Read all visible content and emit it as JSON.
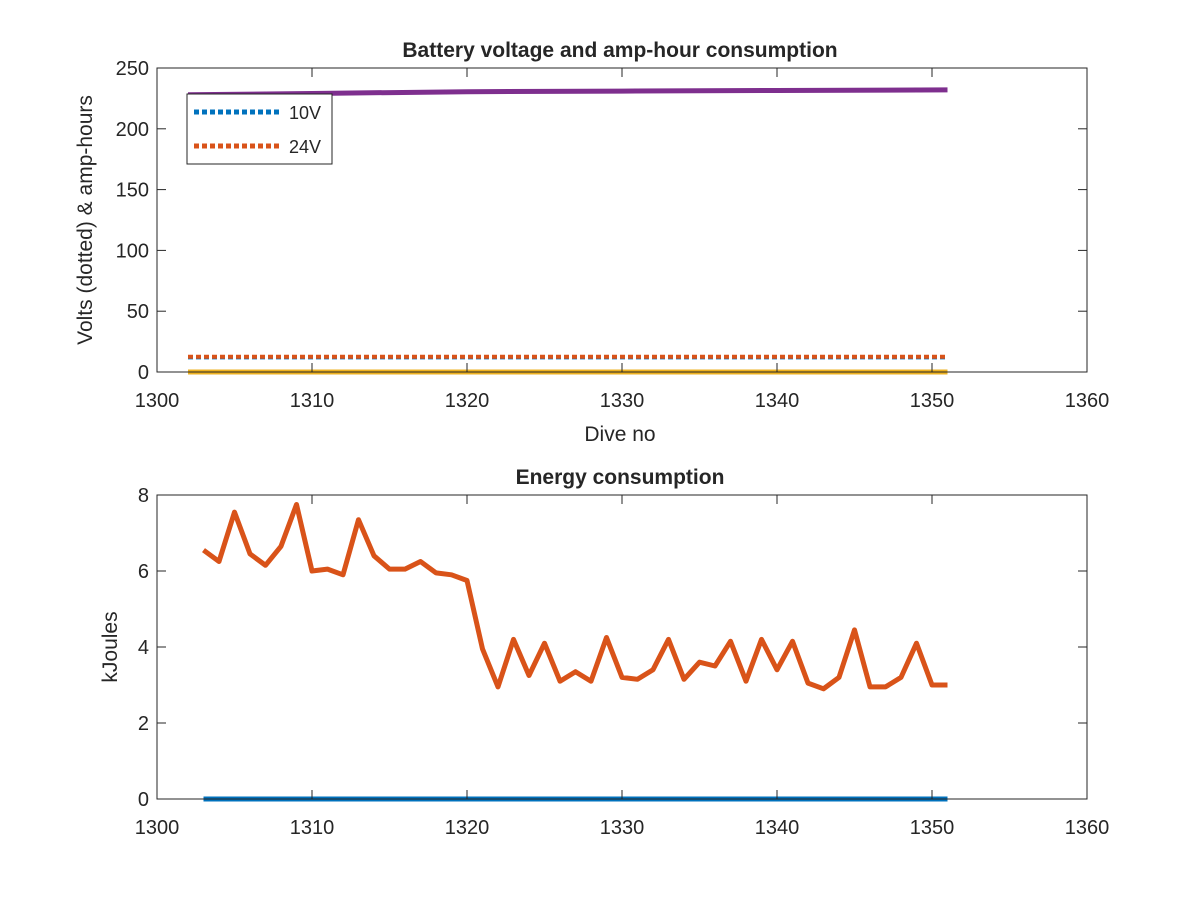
{
  "chart_data": [
    {
      "type": "line",
      "title": "Battery voltage and amp-hour consumption",
      "xlabel": "Dive no",
      "ylabel": "Volts (dotted) & amp-hours",
      "xlim": [
        1300,
        1360
      ],
      "ylim": [
        0,
        250
      ],
      "xticks": [
        1300,
        1310,
        1320,
        1330,
        1340,
        1350,
        1360
      ],
      "yticks": [
        0,
        50,
        100,
        150,
        200,
        250
      ],
      "grid": false,
      "legend_position": "top-left",
      "series": [
        {
          "name": "10V",
          "style": "dotted",
          "color": "#0072BD",
          "x": [
            1302,
            1351
          ],
          "y": [
            12,
            12
          ]
        },
        {
          "name": "24V",
          "style": "dotted",
          "color": "#D95319",
          "x": [
            1302,
            1351
          ],
          "y": [
            12.5,
            12.5
          ]
        },
        {
          "style": "solid",
          "color": "#EDB120",
          "x": [
            1302,
            1351
          ],
          "y": [
            0,
            0
          ]
        },
        {
          "style": "solid",
          "color": "#7E2F8E",
          "x": [
            1302,
            1310,
            1320,
            1330,
            1340,
            1351
          ],
          "y": [
            228,
            229,
            230.5,
            231,
            231.5,
            232
          ]
        }
      ]
    },
    {
      "type": "line",
      "title": "Energy consumption",
      "xlabel": "",
      "ylabel": "kJoules",
      "xlim": [
        1300,
        1360
      ],
      "ylim": [
        0,
        8
      ],
      "xticks": [
        1300,
        1310,
        1320,
        1330,
        1340,
        1350,
        1360
      ],
      "yticks": [
        0,
        2,
        4,
        6,
        8
      ],
      "grid": false,
      "series": [
        {
          "style": "solid",
          "color": "#0072BD",
          "x": [
            1303,
            1351
          ],
          "y": [
            0,
            0
          ]
        },
        {
          "style": "solid",
          "color": "#D95319",
          "x": [
            1303,
            1304,
            1305,
            1306,
            1307,
            1308,
            1309,
            1310,
            1311,
            1312,
            1313,
            1314,
            1315,
            1316,
            1317,
            1318,
            1319,
            1320,
            1321,
            1322,
            1323,
            1324,
            1325,
            1326,
            1327,
            1328,
            1329,
            1330,
            1331,
            1332,
            1333,
            1334,
            1335,
            1336,
            1337,
            1338,
            1339,
            1340,
            1341,
            1342,
            1343,
            1344,
            1345,
            1346,
            1347,
            1348,
            1349,
            1350,
            1351
          ],
          "y": [
            6.55,
            6.25,
            7.55,
            6.45,
            6.15,
            6.65,
            7.75,
            6.0,
            6.05,
            5.9,
            7.35,
            6.4,
            6.05,
            6.05,
            6.25,
            5.95,
            5.9,
            5.75,
            3.95,
            2.95,
            4.2,
            3.25,
            4.1,
            3.1,
            3.35,
            3.1,
            4.25,
            3.2,
            3.15,
            3.4,
            4.2,
            3.15,
            3.6,
            3.5,
            4.15,
            3.1,
            4.2,
            3.4,
            4.15,
            3.05,
            2.9,
            3.2,
            4.45,
            2.95,
            2.95,
            3.2,
            4.1,
            3.0,
            3.0
          ]
        }
      ]
    }
  ]
}
